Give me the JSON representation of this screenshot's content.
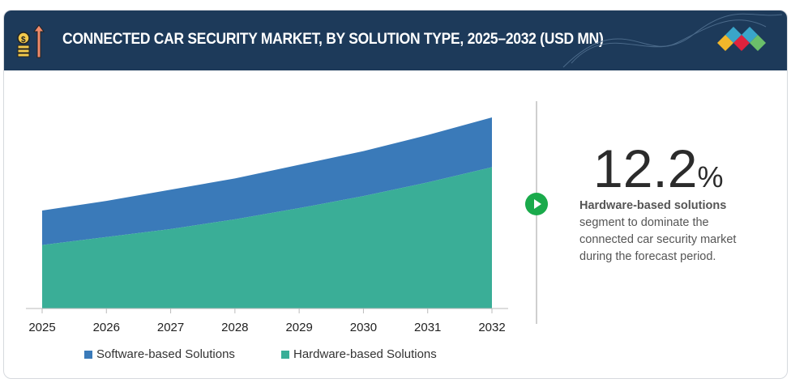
{
  "header": {
    "title": "CONNECTED CAR SECURITY MARKET, BY SOLUTION TYPE, 2025–2032 (USD MN)"
  },
  "colors": {
    "software": "#3a7ab9",
    "hardware": "#3aae97",
    "header": "#1d3a5a",
    "accent": "#1aaa4b"
  },
  "chart_data": {
    "type": "area",
    "stacked": true,
    "title": "CONNECTED CAR SECURITY MARKET, BY SOLUTION TYPE, 2025–2032 (USD MN)",
    "x": [
      "2025",
      "2026",
      "2027",
      "2028",
      "2029",
      "2030",
      "2031",
      "2032"
    ],
    "series": [
      {
        "name": "Hardware-based Solutions",
        "values": [
          79,
          89,
          99,
          111,
          125,
          140,
          157,
          176
        ]
      },
      {
        "name": "Software-based Solutions",
        "values": [
          43,
          45,
          49,
          51,
          54,
          56,
          59,
          62
        ]
      }
    ],
    "ylim": [
      0,
      240
    ],
    "note": "values are relative; no y-axis shown",
    "legend_position": "bottom"
  },
  "legend": {
    "software": "Software-based Solutions",
    "hardware": "Hardware-based Solutions"
  },
  "callout": {
    "value": "12.2",
    "unit": "%",
    "bold": "Hardware-based solutions",
    "text": "segment to dominate the connected car security market during the forecast period."
  }
}
